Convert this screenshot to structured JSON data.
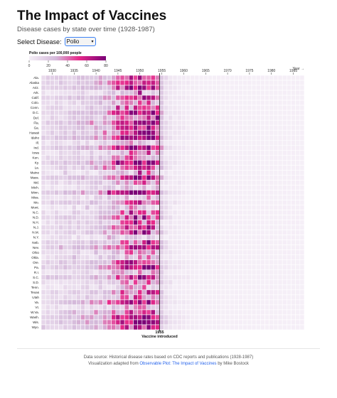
{
  "header": {
    "title": "The Impact of Vaccines",
    "subtitle": "Disease cases by state over time (1928-1987)"
  },
  "controls": {
    "select_label": "Select Disease:",
    "selected_disease": "Polio",
    "dropdown_icon": "updown-chevron-icon"
  },
  "colors": {
    "low": "#f5eff7",
    "mid": "#e7298a",
    "high": "#7a0177",
    "gridline": "#ffffff"
  },
  "chart_data": {
    "type": "heatmap",
    "legend": {
      "title": "Polio cases per 100,000 people",
      "ticks": [
        0,
        20,
        40,
        60,
        80
      ],
      "domain": [
        0,
        80
      ]
    },
    "x_axis_label": "Year →",
    "x_tick_labels": [
      1930,
      1935,
      1940,
      1945,
      1950,
      1955,
      1960,
      1965,
      1970,
      1975,
      1980,
      1985
    ],
    "years": [
      1928,
      1987
    ],
    "states": [
      "Ala.",
      "Alaska",
      "Ariz.",
      "Ark.",
      "Calif.",
      "Colo.",
      "Conn.",
      "D.C.",
      "Del.",
      "Fla.",
      "Ga.",
      "Hawaii",
      "Idaho",
      "Ill.",
      "Ind.",
      "Iowa",
      "Ken.",
      "Ky.",
      "La.",
      "Maine",
      "Mass.",
      "Md.",
      "Mich.",
      "Minn.",
      "Miss.",
      "Mo.",
      "Mont.",
      "N.C.",
      "N.D.",
      "N.H.",
      "N.J.",
      "N.M.",
      "N.Y.",
      "Neb.",
      "Nev.",
      "Ohio",
      "Okla.",
      "Ore.",
      "Pa.",
      "R.I.",
      "S.C.",
      "S.D.",
      "Tenn.",
      "Texas",
      "Utah",
      "Va.",
      "Vt.",
      "W.Va.",
      "Wash.",
      "Wis.",
      "Wyo."
    ],
    "annotation": {
      "year": 1955,
      "label_year": "1955",
      "label_text": "Vaccine introduced"
    },
    "profile": {
      "note": "approximate average intensity by year, from visual inspection",
      "levels": [
        [
          1928,
          10
        ],
        [
          1932,
          13
        ],
        [
          1936,
          16
        ],
        [
          1940,
          19
        ],
        [
          1943,
          23
        ],
        [
          1944,
          30
        ],
        [
          1946,
          38
        ],
        [
          1948,
          44
        ],
        [
          1950,
          47
        ],
        [
          1952,
          50
        ],
        [
          1954,
          38
        ],
        [
          1955,
          18
        ],
        [
          1956,
          8
        ],
        [
          1957,
          5
        ],
        [
          1959,
          3
        ],
        [
          1962,
          1
        ],
        [
          1965,
          0
        ],
        [
          1987,
          0
        ]
      ]
    }
  },
  "footer": {
    "source": "Data source: Historical disease rates based on CDC reports and publications (1928-1987)",
    "credit_prefix": "Visualization adapted from ",
    "credit_link": "Observable Plot: The Impact of Vaccines",
    "credit_suffix": " by Mike Bostock"
  }
}
